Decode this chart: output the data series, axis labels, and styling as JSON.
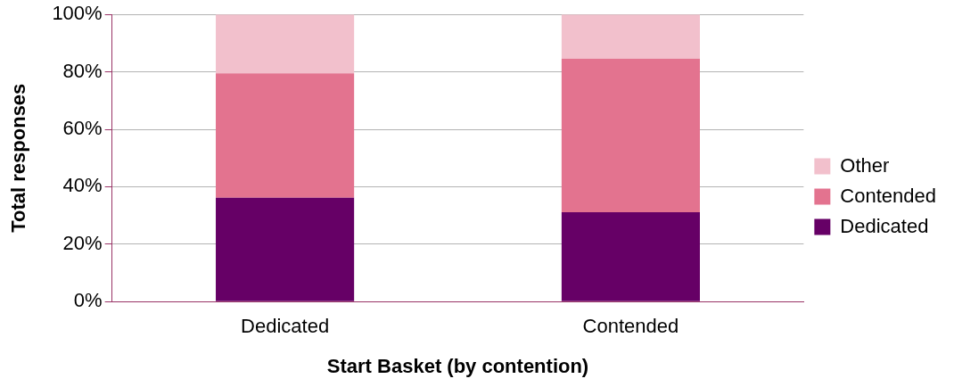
{
  "chart_data": {
    "type": "bar",
    "stacked": true,
    "xlabel": "Start Basket (by contention)",
    "ylabel": "Total responses",
    "categories": [
      "Dedicated",
      "Contended"
    ],
    "series": [
      {
        "name": "Dedicated",
        "color": "#660066",
        "values": [
          36.2,
          31.1
        ]
      },
      {
        "name": "Contended",
        "color": "#e3738f",
        "values": [
          43.3,
          53.5
        ]
      },
      {
        "name": "Other",
        "color": "#f2c0cc",
        "values": [
          20.5,
          15.4
        ]
      }
    ],
    "ylim": [
      0,
      100
    ],
    "yticks": [
      {
        "value": 0,
        "label": "0%"
      },
      {
        "value": 20,
        "label": "20%"
      },
      {
        "value": 40,
        "label": "40%"
      },
      {
        "value": 60,
        "label": "60%"
      },
      {
        "value": 80,
        "label": "80%"
      },
      {
        "value": 100,
        "label": "100%"
      }
    ],
    "grid": "y",
    "legend": "right"
  }
}
